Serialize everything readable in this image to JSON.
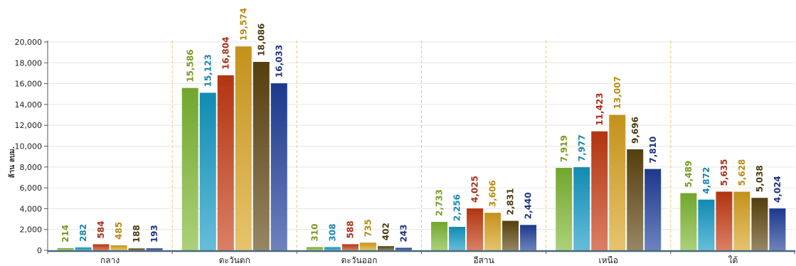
{
  "chart_data": {
    "type": "bar",
    "ylabel": "ล้าน ลบม.",
    "ylim": [
      0,
      20000
    ],
    "yticks": [
      0,
      2000,
      4000,
      6000,
      8000,
      10000,
      12000,
      14000,
      16000,
      18000,
      20000
    ],
    "ytick_labels": [
      "0",
      "2,000",
      "4,000",
      "6,000",
      "8,000",
      "10,000",
      "12,000",
      "14,000",
      "16,000",
      "18,000",
      "20,000"
    ],
    "grid": "horizontal",
    "categories": [
      "กลาง",
      "ตะวันตก",
      "ตะวันออก",
      "อีสาน",
      "เหนือ",
      "ใต้"
    ],
    "series": [
      {
        "color": "#7fb832",
        "values": [
          214,
          15586,
          310,
          2733,
          7919,
          5489
        ],
        "labels": [
          "214",
          "15,586",
          "310",
          "2,733",
          "7,919",
          "5,489"
        ]
      },
      {
        "color": "#129ac6",
        "values": [
          282,
          15123,
          308,
          2256,
          7977,
          4872
        ],
        "labels": [
          "282",
          "15,123",
          "308",
          "2,256",
          "7,977",
          "4,872"
        ]
      },
      {
        "color": "#c63a12",
        "values": [
          584,
          16804,
          588,
          4025,
          11423,
          5635
        ],
        "labels": [
          "584",
          "16,804",
          "588",
          "4,025",
          "11,423",
          "5,635"
        ]
      },
      {
        "color": "#d9a21e",
        "values": [
          485,
          19574,
          735,
          3606,
          13007,
          5628
        ],
        "labels": [
          "485",
          "19,574",
          "735",
          "3,606",
          "13,007",
          "5,628"
        ]
      },
      {
        "color": "#5e4510",
        "values": [
          188,
          18086,
          402,
          2831,
          9696,
          5038
        ],
        "labels": [
          "188",
          "18,086",
          "402",
          "2,831",
          "9,696",
          "5,038"
        ]
      },
      {
        "color": "#1f3f9a",
        "values": [
          193,
          16033,
          243,
          2440,
          7810,
          4024
        ],
        "labels": [
          "193",
          "16,033",
          "243",
          "2,440",
          "7,810",
          "4,024"
        ]
      }
    ],
    "label_colors": [
      "#7a9a22",
      "#1a86ad",
      "#a8301a",
      "#b98b12",
      "#4a3a10",
      "#20357f"
    ]
  }
}
